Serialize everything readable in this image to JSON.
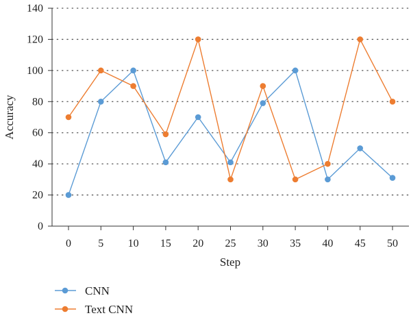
{
  "chart_data": {
    "type": "line",
    "x": [
      0,
      5,
      10,
      15,
      20,
      25,
      30,
      35,
      40,
      45,
      50
    ],
    "xlabel": "Step",
    "ylabel": "Accuracy",
    "xticks": [
      "0",
      "5",
      "10",
      "15",
      "20",
      "25",
      "30",
      "35",
      "40",
      "45",
      "50"
    ],
    "yticks": [
      "0",
      "20",
      "40",
      "60",
      "80",
      "100",
      "120",
      "140"
    ],
    "ylim": [
      0,
      140
    ],
    "grid": "horizontal-dotted",
    "legend_position": "bottom-left",
    "series": [
      {
        "name": "CNN",
        "color": "#5b9bd5",
        "values": [
          20,
          80,
          100,
          41,
          70,
          41,
          79,
          100,
          30,
          50,
          31
        ]
      },
      {
        "name": "Text CNN",
        "color": "#ed7d31",
        "values": [
          70,
          100,
          90,
          59,
          120,
          30,
          90,
          30,
          40,
          120,
          80
        ]
      }
    ]
  }
}
